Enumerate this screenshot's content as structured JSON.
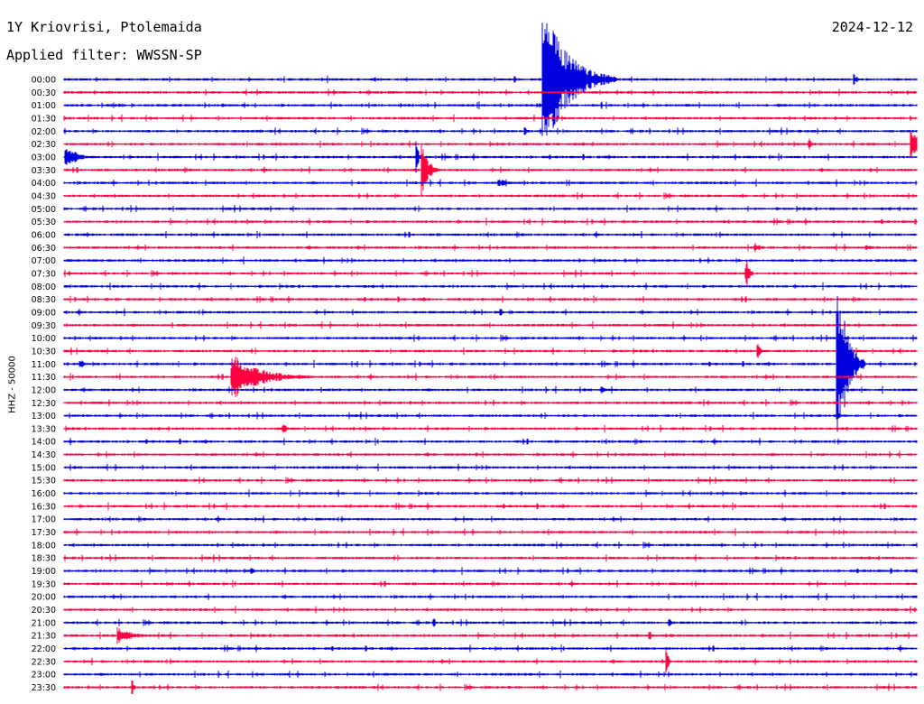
{
  "header": {
    "station": "1Y Kriovrisi, Ptolemaida",
    "filter": "Applied filter: WWSSN-SP",
    "date": "2024-12-12"
  },
  "colors": {
    "even": "#0000dd",
    "odd": "#ff0040"
  },
  "chart_data": {
    "type": "line",
    "title": "1Y Kriovrisi, Ptolemaida",
    "subtitle": "Applied filter: WWSSN-SP",
    "date": "2024-12-12",
    "ylabel": "HHZ - 50000",
    "row_labels": [
      "00:00",
      "00:30",
      "01:00",
      "01:30",
      "02:00",
      "02:30",
      "03:00",
      "03:30",
      "04:00",
      "04:30",
      "05:00",
      "05:30",
      "06:00",
      "06:30",
      "07:00",
      "07:30",
      "08:00",
      "08:30",
      "09:00",
      "09:30",
      "10:00",
      "10:30",
      "11:00",
      "11:30",
      "12:00",
      "12:30",
      "13:00",
      "13:30",
      "14:00",
      "14:30",
      "15:00",
      "15:30",
      "16:00",
      "16:30",
      "17:00",
      "17:30",
      "18:00",
      "18:30",
      "19:00",
      "19:30",
      "20:00",
      "20:30",
      "21:00",
      "21:30",
      "22:00",
      "22:30",
      "23:00",
      "23:30"
    ],
    "x_range_minutes": [
      0,
      30
    ],
    "events": [
      {
        "row": 0,
        "t": 16.85,
        "amp": 68,
        "dur": 2.6
      },
      {
        "row": 0,
        "t": 27.8,
        "amp": 6,
        "dur": 0.3
      },
      {
        "row": 4,
        "t": 16.2,
        "amp": 5,
        "dur": 0.3
      },
      {
        "row": 5,
        "t": 26.2,
        "amp": 10,
        "dur": 0.2
      },
      {
        "row": 5,
        "t": 29.8,
        "amp": 14,
        "dur": 0.8
      },
      {
        "row": 6,
        "t": 0.05,
        "amp": 12,
        "dur": 1.1
      },
      {
        "row": 6,
        "t": 12.4,
        "amp": 18,
        "dur": 0.2
      },
      {
        "row": 7,
        "t": 12.6,
        "amp": 30,
        "dur": 0.6
      },
      {
        "row": 8,
        "t": 15.3,
        "amp": 4,
        "dur": 1.1
      },
      {
        "row": 13,
        "t": 24.3,
        "amp": 6,
        "dur": 0.5
      },
      {
        "row": 13,
        "t": 28.2,
        "amp": 3,
        "dur": 0.7
      },
      {
        "row": 15,
        "t": 24.0,
        "amp": 16,
        "dur": 0.3
      },
      {
        "row": 18,
        "t": 15.35,
        "amp": 7,
        "dur": 0.2
      },
      {
        "row": 21,
        "t": 24.4,
        "amp": 8,
        "dur": 0.3
      },
      {
        "row": 22,
        "t": 0.6,
        "amp": 5,
        "dur": 0.3
      },
      {
        "row": 22,
        "t": 27.2,
        "amp": 88,
        "dur": 1.0
      },
      {
        "row": 23,
        "t": 5.9,
        "amp": 23,
        "dur": 2.8
      },
      {
        "row": 24,
        "t": 18.9,
        "amp": 4,
        "dur": 0.4
      },
      {
        "row": 26,
        "t": 27.2,
        "amp": 8,
        "dur": 0.2
      },
      {
        "row": 27,
        "t": 7.7,
        "amp": 8,
        "dur": 0.3
      },
      {
        "row": 38,
        "t": 6.6,
        "amp": 8,
        "dur": 0.2
      },
      {
        "row": 42,
        "t": 13.0,
        "amp": 7,
        "dur": 0.2
      },
      {
        "row": 42,
        "t": 21.3,
        "amp": 5,
        "dur": 0.2
      },
      {
        "row": 43,
        "t": 1.9,
        "amp": 10,
        "dur": 1.3
      },
      {
        "row": 43,
        "t": 20.6,
        "amp": 6,
        "dur": 0.2
      },
      {
        "row": 45,
        "t": 21.2,
        "amp": 15,
        "dur": 0.2
      },
      {
        "row": 47,
        "t": 2.4,
        "amp": 8,
        "dur": 0.2
      }
    ]
  }
}
